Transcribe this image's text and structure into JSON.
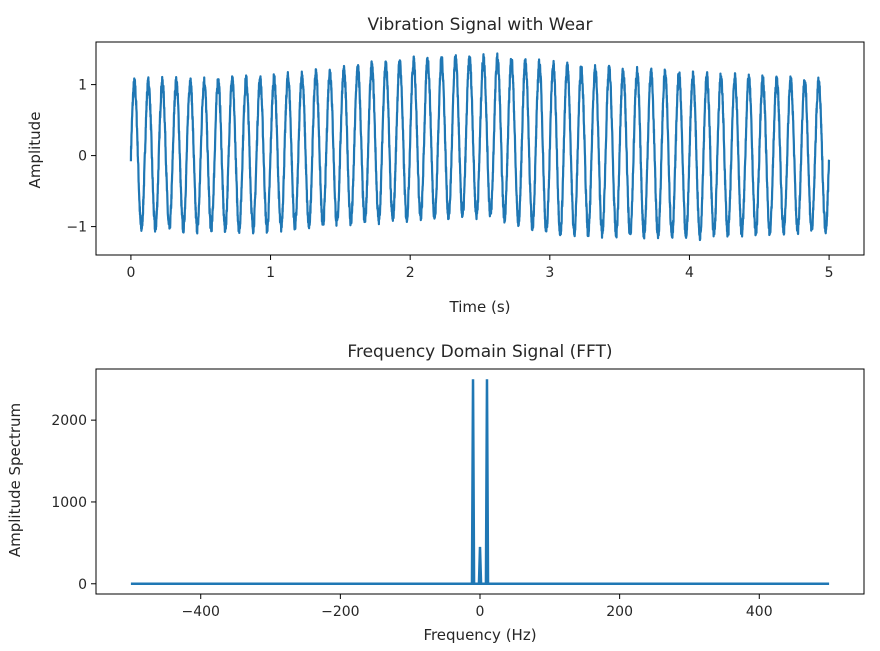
{
  "chart_data": [
    {
      "type": "line",
      "title": "Vibration Signal with Wear",
      "xlabel": "Time (s)",
      "ylabel": "Amplitude",
      "xlim": [
        -0.25,
        5.25
      ],
      "ylim": [
        -1.4,
        1.6
      ],
      "xticks": [
        0,
        1,
        2,
        3,
        4,
        5
      ],
      "xtick_labels": [
        "0",
        "1",
        "2",
        "3",
        "4",
        "5"
      ],
      "yticks": [
        -1,
        0,
        1
      ],
      "ytick_labels": [
        "−1",
        "0",
        "1"
      ],
      "grid": false,
      "color": "#1f77b4",
      "series": [
        {
          "dominant_frequency_hz": 10,
          "t_range": [
            0,
            5
          ],
          "envelope": [
            {
              "t": 0,
              "peak": 1.1,
              "trough": -1.1
            },
            {
              "t": 1,
              "peak": 1.15,
              "trough": -1.1
            },
            {
              "t": 2,
              "peak": 1.4,
              "trough": -0.95
            },
            {
              "t": 2.6,
              "peak": 1.45,
              "trough": -0.9
            },
            {
              "t": 3,
              "peak": 1.35,
              "trough": -1.15
            },
            {
              "t": 4,
              "peak": 1.2,
              "trough": -1.2
            },
            {
              "t": 5,
              "peak": 1.1,
              "trough": -1.1
            }
          ]
        }
      ]
    },
    {
      "type": "line",
      "title": "Frequency Domain Signal (FFT)",
      "xlabel": "Frequency (Hz)",
      "ylabel": "Amplitude Spectrum",
      "xlim": [
        -550,
        550
      ],
      "ylim": [
        -125,
        2625
      ],
      "xticks": [
        -400,
        -200,
        0,
        200,
        400
      ],
      "xtick_labels": [
        "−400",
        "−200",
        "0",
        "200",
        "400"
      ],
      "yticks": [
        0,
        1000,
        2000
      ],
      "ytick_labels": [
        "0",
        "1000",
        "2000"
      ],
      "grid": false,
      "color": "#1f77b4",
      "series": [
        {
          "x_range": [
            -500,
            500
          ],
          "baseline": 0,
          "peaks": [
            {
              "x": -10,
              "y": 2500
            },
            {
              "x": 0,
              "y": 450
            },
            {
              "x": 10,
              "y": 2500
            }
          ]
        }
      ]
    }
  ]
}
